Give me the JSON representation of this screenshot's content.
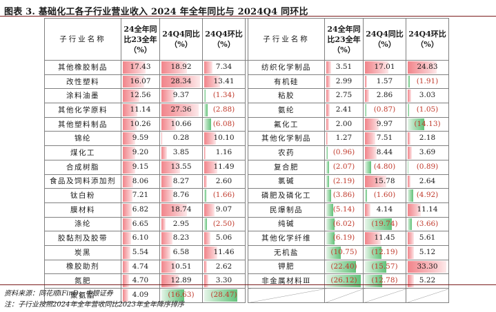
{
  "title": "图表 3. 基础化工各子行业营业收入 2024 年全年同比与 2024Q4 同环比",
  "headers": {
    "name": "子行业名称",
    "yoy24": "24全年同比23全年（%）",
    "q4_yoy": "24Q4同比（%）",
    "q4_qoq": "24Q4环比（%）"
  },
  "left_rows": [
    {
      "name": "其他橡胶制品",
      "yoy24": "17.43",
      "q4_yoy": "18.92",
      "q4_qoq": "7.34"
    },
    {
      "name": "改性塑料",
      "yoy24": "16.07",
      "q4_yoy": "28.34",
      "q4_qoq": "13.41"
    },
    {
      "name": "涂料油墨",
      "yoy24": "12.56",
      "q4_yoy": "9.37",
      "q4_qoq": "(1.34)"
    },
    {
      "name": "其他化学原料",
      "yoy24": "11.14",
      "q4_yoy": "27.36",
      "q4_qoq": "(2.88)"
    },
    {
      "name": "其他塑料制品",
      "yoy24": "10.26",
      "q4_yoy": "10.66",
      "q4_qoq": "(6.08)"
    },
    {
      "name": "锦纶",
      "yoy24": "9.59",
      "q4_yoy": "0.28",
      "q4_qoq": "10.10"
    },
    {
      "name": "煤化工",
      "yoy24": "9.20",
      "q4_yoy": "3.85",
      "q4_qoq": "1.16"
    },
    {
      "name": "合成树脂",
      "yoy24": "9.15",
      "q4_yoy": "13.55",
      "q4_qoq": "11.49"
    },
    {
      "name": "食品及饲料添加剂",
      "yoy24": "8.06",
      "q4_yoy": "8.27",
      "q4_qoq": "2.60"
    },
    {
      "name": "钛白粉",
      "yoy24": "7.21",
      "q4_yoy": "8.76",
      "q4_qoq": "(1.66)"
    },
    {
      "name": "膜材料",
      "yoy24": "6.82",
      "q4_yoy": "18.74",
      "q4_qoq": "9.07"
    },
    {
      "name": "涤纶",
      "yoy24": "6.65",
      "q4_yoy": "2.95",
      "q4_qoq": "(2.50)"
    },
    {
      "name": "胶黏剂及胶带",
      "yoy24": "6.10",
      "q4_yoy": "8.23",
      "q4_qoq": "5.06"
    },
    {
      "name": "炭黑",
      "yoy24": "5.54",
      "q4_yoy": "6.58",
      "q4_qoq": "11.46"
    },
    {
      "name": "橡胶助剂",
      "yoy24": "4.74",
      "q4_yoy": "10.51",
      "q4_qoq": "2.62"
    },
    {
      "name": "氮肥",
      "yoy24": "4.70",
      "q4_yoy": "12.89",
      "q4_qoq": "3.30"
    },
    {
      "name": "聚氨酯",
      "yoy24": "4.09",
      "q4_yoy": "(16.63)",
      "q4_qoq": "(28.47)"
    }
  ],
  "right_rows": [
    {
      "name": "纺织化学制品",
      "yoy24": "3.51",
      "q4_yoy": "17.01",
      "q4_qoq": "24.83"
    },
    {
      "name": "有机硅",
      "yoy24": "2.99",
      "q4_yoy": "1.57",
      "q4_qoq": "(1.91)"
    },
    {
      "name": "粘胶",
      "yoy24": "2.75",
      "q4_yoy": "2.86",
      "q4_qoq": "3.03"
    },
    {
      "name": "氨纶",
      "yoy24": "2.41",
      "q4_yoy": "(0.87)",
      "q4_qoq": "(1.05)"
    },
    {
      "name": "氟化工",
      "yoy24": "2.00",
      "q4_yoy": "9.97",
      "q4_qoq": "(14.13)"
    },
    {
      "name": "其他化学制品",
      "yoy24": "1.27",
      "q4_yoy": "7.51",
      "q4_qoq": "2.18"
    },
    {
      "name": "农药",
      "yoy24": "(0.96)",
      "q4_yoy": "8.44",
      "q4_qoq": "3.69"
    },
    {
      "name": "复合肥",
      "yoy24": "(2.07)",
      "q4_yoy": "(4.80)",
      "q4_qoq": "(0.89)"
    },
    {
      "name": "氯碱",
      "yoy24": "(2.19)",
      "q4_yoy": "15.78",
      "q4_qoq": "2.64"
    },
    {
      "name": "磷肥及磷化工",
      "yoy24": "(3.86)",
      "q4_yoy": "(1.60)",
      "q4_qoq": "(4.92)"
    },
    {
      "name": "民爆制品",
      "yoy24": "(5.14)",
      "q4_yoy": "4.14",
      "q4_qoq": "11.14"
    },
    {
      "name": "纯碱",
      "yoy24": "(6.02)",
      "q4_yoy": "(19.74)",
      "q4_qoq": "(3.66)"
    },
    {
      "name": "其他化学纤维",
      "yoy24": "(6.19)",
      "q4_yoy": "11.45",
      "q4_qoq": "5.61"
    },
    {
      "name": "无机盐",
      "yoy24": "(10.75)",
      "q4_yoy": "(12.19)",
      "q4_qoq": "5.12"
    },
    {
      "name": "钾肥",
      "yoy24": "(22.40)",
      "q4_yoy": "(15.57)",
      "q4_qoq": "33.30"
    },
    {
      "name": "非金属材料Ⅲ",
      "yoy24": "(26.12)",
      "q4_yoy": "(12.78)",
      "q4_qoq": "5.22"
    }
  ],
  "scale": {
    "yoy24_max": 26.12,
    "q4_yoy_max": 28.34,
    "q4_qoq_max": 33.3
  },
  "footnotes": {
    "source": "资料来源：同花顺iFinD，中银证券",
    "note": "注：子行业按照2024年全年营收同比2023年全年降序排序"
  },
  "colors": {
    "positive": "#f1848a",
    "negative": "#63c27a",
    "negative_text": "#c0392b",
    "rule": "#7a1a1a"
  }
}
